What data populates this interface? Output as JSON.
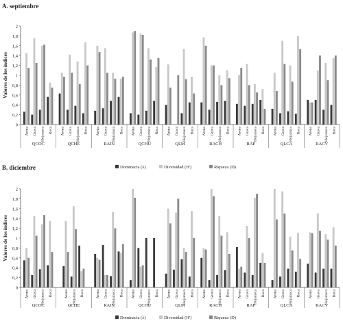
{
  "legend": {
    "dominance": "Dominacia (λ)",
    "diversity": "Diversidad (H')",
    "richness": "Riqueza (D)"
  },
  "colors": {
    "dominance": "#3a3a3a",
    "diversity": "#c8c8c8",
    "richness": "#8a8a8a",
    "axis": "#555555"
  },
  "chart_data": [
    {
      "type": "bar",
      "title": "A. septiembre",
      "ylabel": "Valores de los índices",
      "ylim": [
        0,
        2
      ],
      "yticks": [
        "0",
        "0,2",
        "0,4",
        "0,6",
        "0,8",
        "1",
        "1,2",
        "1,4",
        "1,6",
        "1,8",
        "2"
      ],
      "legend_position": "bottom",
      "sites": [
        {
          "site": "QCOC",
          "categories": [
            "Arena",
            "Grava",
            "Hojarasca",
            "Roca"
          ],
          "dominance": [
            0.26,
            0.2,
            0.3,
            0.56
          ],
          "diversity": [
            1.45,
            1.75,
            1.6,
            0.85
          ],
          "richness": [
            1.15,
            1.25,
            1.62,
            0.75
          ]
        },
        {
          "site": "QCHE",
          "categories": [
            "Arena",
            "Grava",
            "Hojarasca",
            "Roca"
          ],
          "dominance": [
            0.63,
            0.3,
            0.38,
            0.23
          ],
          "diversity": [
            1.05,
            1.42,
            1.28,
            1.67
          ],
          "richness": [
            0.97,
            1.05,
            0.82,
            1.2
          ]
        },
        {
          "site": "RAIN",
          "categories": [
            "Arena",
            "Grava",
            "Hojarasca",
            "Roca"
          ],
          "dominance": [
            0.28,
            0.33,
            0.48,
            0.56
          ],
          "diversity": [
            1.6,
            1.55,
            1.05,
            0.93
          ],
          "richness": [
            1.47,
            1.05,
            0.93,
            0.97
          ]
        },
        {
          "site": "QCHU",
          "categories": [
            "Arena",
            "Grava",
            "Hojarasca",
            "Roca"
          ],
          "dominance": [
            0.23,
            0.2,
            0.28,
            0.48
          ],
          "diversity": [
            1.87,
            1.85,
            1.55,
            1.17
          ],
          "richness": [
            1.9,
            1.82,
            1.32,
            1.35
          ]
        },
        {
          "site": "QLM",
          "categories": [
            "Arena",
            "Grava",
            "Hojarasca",
            "Roca"
          ],
          "dominance": [
            0.4,
            0.0,
            0.23,
            0.45
          ],
          "diversity": [
            1.22,
            0.0,
            1.53,
            0.97
          ],
          "richness": [
            0.75,
            1.0,
            0.92,
            0.63
          ]
        },
        {
          "site": "RACH",
          "categories": [
            "Arena",
            "Grava",
            "Hojarasca",
            "Roca"
          ],
          "dominance": [
            0.45,
            0.3,
            0.46,
            0.48
          ],
          "diversity": [
            1.77,
            1.2,
            1.0,
            1.1
          ],
          "richness": [
            1.6,
            1.2,
            0.8,
            0.94
          ]
        },
        {
          "site": "RAP",
          "categories": [
            "Arena",
            "Grava",
            "Hojarasca",
            "Roca"
          ],
          "dominance": [
            0.42,
            0.38,
            0.42,
            0.5
          ],
          "diversity": [
            1.0,
            1.23,
            0.82,
            0.72
          ],
          "richness": [
            1.15,
            0.8,
            0.65,
            0.32
          ]
        },
        {
          "site": "QLCA",
          "categories": [
            "Arena",
            "Grava",
            "Hojarasca",
            "Roca"
          ],
          "dominance": [
            0.32,
            0.23,
            0.27,
            0.22
          ],
          "diversity": [
            1.05,
            1.7,
            1.2,
            1.8
          ],
          "richness": [
            0.68,
            1.23,
            0.87,
            1.53
          ]
        },
        {
          "site": "RACV",
          "categories": [
            "Arena",
            "Grava",
            "Hojarasca",
            "Roca"
          ],
          "dominance": [
            0.5,
            0.5,
            0.3,
            0.4
          ],
          "diversity": [
            0.45,
            1.1,
            1.25,
            1.35
          ],
          "richness": [
            0.45,
            1.4,
            0.9,
            1.4
          ]
        }
      ]
    },
    {
      "type": "bar",
      "title": "B. diciembre",
      "ylabel": "Valores de los índices",
      "ylim": [
        0,
        2
      ],
      "yticks": [
        "0",
        "0,2",
        "0,4",
        "0,6",
        "0,8",
        "1",
        "1,2",
        "1,4",
        "1,6",
        "1,8",
        "2"
      ],
      "legend_position": "bottom",
      "sites": [
        {
          "site": "QCOC",
          "categories": [
            "Arena",
            "Grava",
            "Hojarasca",
            "Roca"
          ],
          "dominance": [
            0.55,
            0.25,
            0.37,
            0.45
          ],
          "diversity": [
            0.8,
            1.45,
            1.28,
            1.35
          ],
          "richness": [
            0.6,
            1.05,
            1.47,
            0.72
          ]
        },
        {
          "site": "QCHE",
          "categories": [
            "Arena",
            "Hojarasca",
            "Roca"
          ],
          "dominance": [
            0.43,
            0.22,
            0.85
          ],
          "diversity": [
            1.35,
            1.65,
            0.33
          ],
          "richness": [
            0.72,
            1.18,
            0.38
          ]
        },
        {
          "site": "RAIN",
          "categories": [
            "Arena",
            "Grava",
            "Hojarasca",
            "Roca"
          ],
          "dominance": [
            0.68,
            0.86,
            0.23,
            0.73
          ],
          "diversity": [
            0.6,
            0.25,
            1.53,
            0.7
          ],
          "richness": [
            0.56,
            0.25,
            1.2,
            0.88
          ]
        },
        {
          "site": "QCHU",
          "categories": [
            "Arena",
            "Grava",
            "Hojarasca",
            "Roca"
          ],
          "dominance": [
            0.15,
            0.8,
            1.0,
            1.0
          ],
          "diversity": [
            2.0,
            0.42,
            0.0,
            0.0
          ],
          "richness": [
            1.82,
            0.45,
            0.0,
            0.0
          ]
        },
        {
          "site": "QLM",
          "categories": [
            "Arena",
            "Grava",
            "Hojarasca",
            "Roca"
          ],
          "dominance": [
            0.28,
            0.36,
            0.57,
            0.22
          ],
          "diversity": [
            1.6,
            1.52,
            0.8,
            1.55
          ],
          "richness": [
            1.3,
            1.8,
            0.72,
            1.0
          ]
        },
        {
          "site": "RACH",
          "categories": [
            "Arena",
            "Grava",
            "Hojarasca",
            "Roca"
          ],
          "dominance": [
            0.6,
            0.15,
            0.25,
            0.35
          ],
          "diversity": [
            0.8,
            2.0,
            1.45,
            1.12
          ],
          "richness": [
            0.77,
            1.85,
            1.05,
            0.68
          ]
        },
        {
          "site": "RAP",
          "categories": [
            "Arena",
            "Grava",
            "Hojarasca",
            "Roca"
          ],
          "dominance": [
            0.82,
            0.3,
            0.25,
            0.5
          ],
          "diversity": [
            0.38,
            1.25,
            1.82,
            0.7
          ],
          "richness": [
            0.42,
            1.0,
            1.9,
            0.5
          ]
        },
        {
          "site": "QLCA",
          "categories": [
            "Arena",
            "Grava",
            "Hojarasca",
            "Roca"
          ],
          "dominance": [
            0.15,
            0.22,
            0.38,
            0.32
          ],
          "diversity": [
            2.0,
            1.95,
            1.03,
            1.1
          ],
          "richness": [
            1.38,
            1.5,
            0.75,
            0.58
          ]
        },
        {
          "site": "RACV",
          "categories": [
            "Arena",
            "Grava",
            "Hojarasca",
            "Roca"
          ],
          "dominance": [
            0.48,
            0.3,
            0.38,
            0.38
          ],
          "diversity": [
            1.12,
            1.5,
            1.08,
            1.22
          ],
          "richness": [
            1.1,
            1.15,
            0.97,
            0.85
          ]
        }
      ]
    }
  ]
}
